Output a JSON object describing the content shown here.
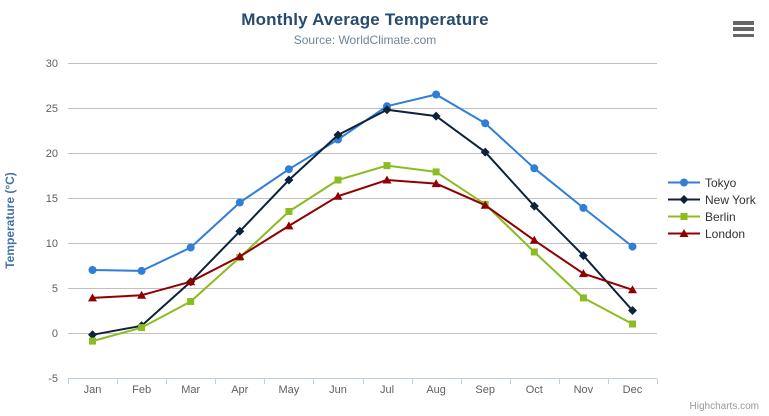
{
  "chart_data": {
    "type": "line",
    "title": "Monthly Average Temperature",
    "subtitle": "Source: WorldClimate.com",
    "ylabel": "Temperature (°C)",
    "xlabel": "",
    "categories": [
      "Jan",
      "Feb",
      "Mar",
      "Apr",
      "May",
      "Jun",
      "Jul",
      "Aug",
      "Sep",
      "Oct",
      "Nov",
      "Dec"
    ],
    "ylim": [
      -5,
      30
    ],
    "yticks": [
      -5,
      0,
      5,
      10,
      15,
      20,
      25,
      30
    ],
    "grid": true,
    "legend_position": "right",
    "series": [
      {
        "name": "Tokyo",
        "color": "#2f7ed8",
        "marker": "circle",
        "values": [
          7.0,
          6.9,
          9.5,
          14.5,
          18.2,
          21.5,
          25.2,
          26.5,
          23.3,
          18.3,
          13.9,
          9.6
        ]
      },
      {
        "name": "New York",
        "color": "#0d233a",
        "marker": "diamond",
        "values": [
          -0.2,
          0.8,
          5.7,
          11.3,
          17.0,
          22.0,
          24.8,
          24.1,
          20.1,
          14.1,
          8.6,
          2.5
        ]
      },
      {
        "name": "Berlin",
        "color": "#8bbc21",
        "marker": "square",
        "values": [
          -0.9,
          0.6,
          3.5,
          8.4,
          13.5,
          17.0,
          18.6,
          17.9,
          14.3,
          9.0,
          3.9,
          1.0
        ]
      },
      {
        "name": "London",
        "color": "#910000",
        "marker": "triangle",
        "values": [
          3.9,
          4.2,
          5.7,
          8.5,
          11.9,
          15.2,
          17.0,
          16.6,
          14.2,
          10.3,
          6.6,
          4.8
        ]
      }
    ]
  },
  "styles": {
    "grid_color": "#c0c0c0",
    "axis_line_color": "#c0d0e0",
    "axis_label_color": "#606060",
    "y_title_color": "#4572a7",
    "title_color": "#274b6d",
    "subtitle_color": "#6d869f",
    "legend_text_color": "#333333"
  },
  "credit": "Highcharts.com",
  "menu_icon": "hamburger-icon"
}
